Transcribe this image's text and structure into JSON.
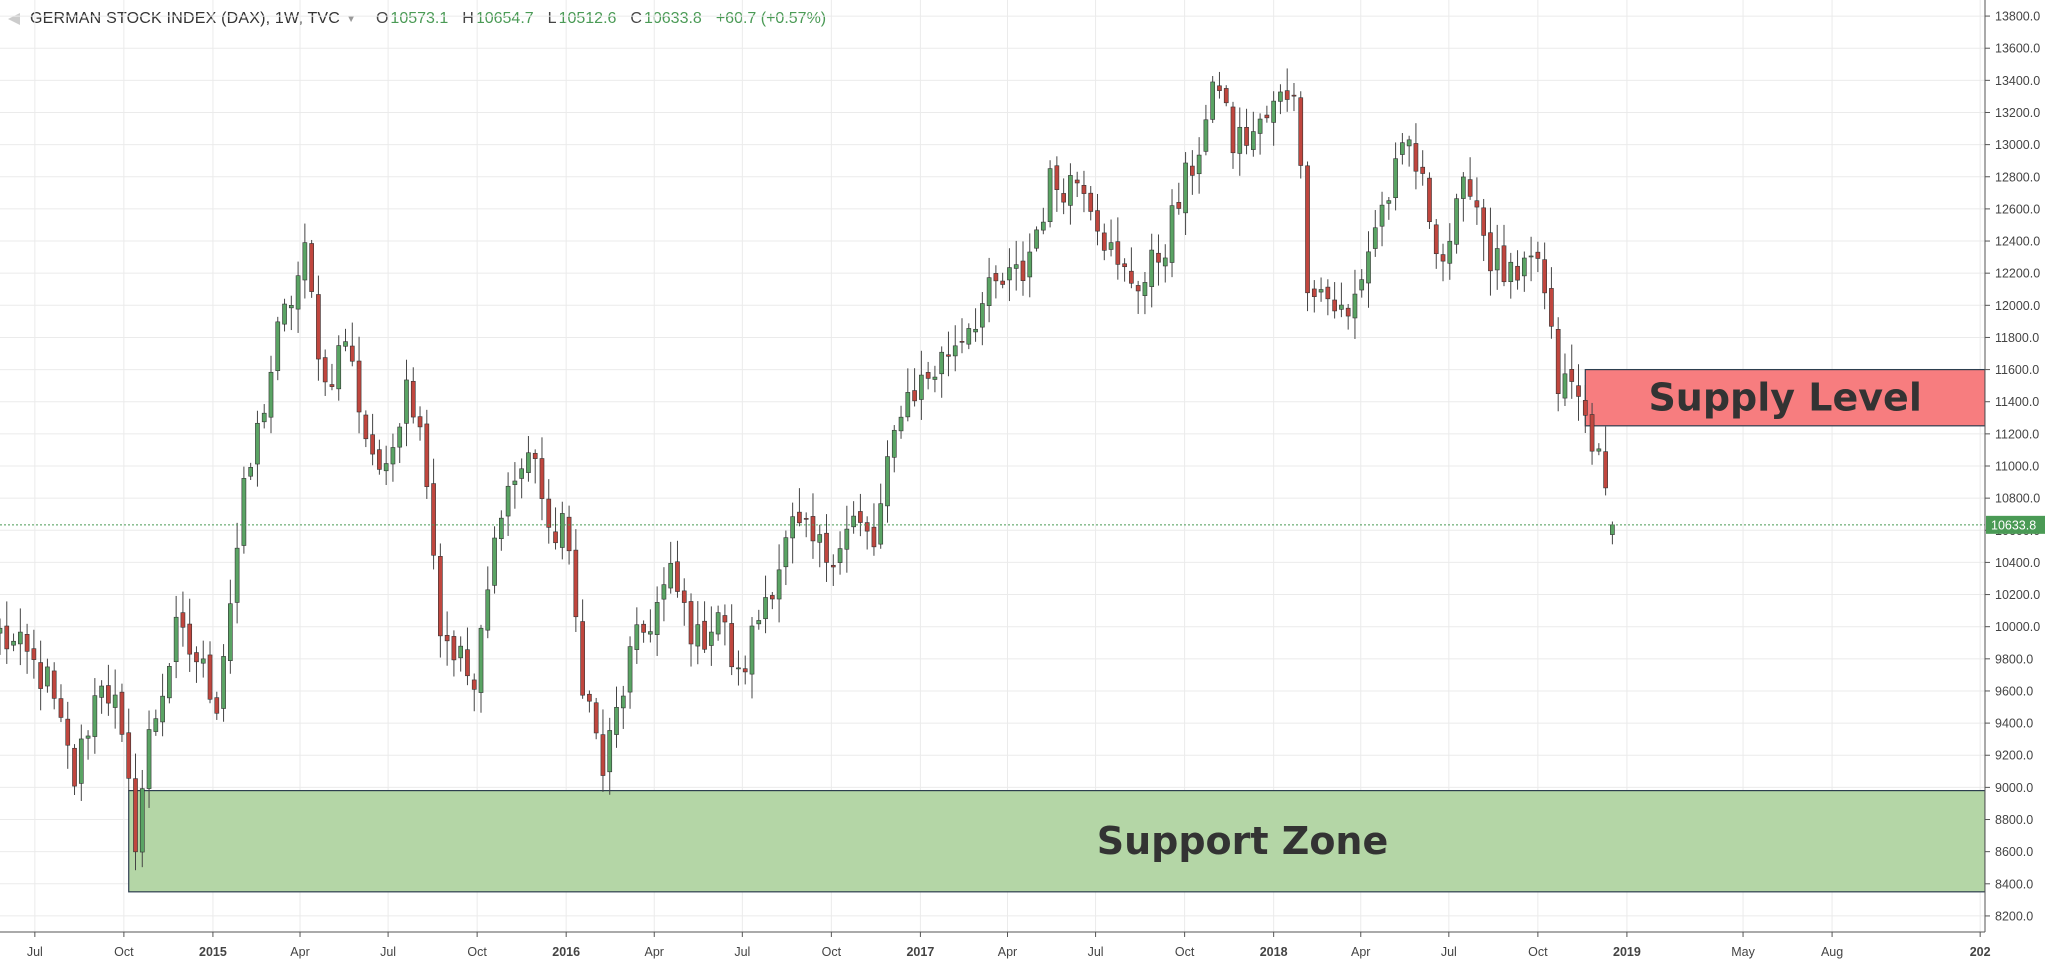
{
  "header": {
    "symbol": "GERMAN STOCK INDEX (DAX), 1W, TVC",
    "open_label": "O",
    "open": "10573.1",
    "high_label": "H",
    "high": "10654.7",
    "low_label": "L",
    "low": "10512.6",
    "close_label": "C",
    "close": "10633.8",
    "change": "+60.7 (+0.57%)"
  },
  "chart_data": {
    "type": "candlestick",
    "interval": "1W",
    "ylim": [
      8100,
      13900
    ],
    "xlim": [
      "2014-05-26",
      "2020-01-06"
    ],
    "y_ticks": [
      "8200.0",
      "8400.0",
      "8600.0",
      "8800.0",
      "9000.0",
      "9200.0",
      "9400.0",
      "9600.0",
      "9800.0",
      "10000.0",
      "10200.0",
      "10400.0",
      "10600.0",
      "10800.0",
      "11000.0",
      "11200.0",
      "11400.0",
      "11600.0",
      "11800.0",
      "12000.0",
      "12200.0",
      "12400.0",
      "12600.0",
      "12800.0",
      "13000.0",
      "13200.0",
      "13400.0",
      "13600.0",
      "13800.0"
    ],
    "x_ticks": [
      {
        "label": "Jul",
        "date": "2014-07-01"
      },
      {
        "label": "Oct",
        "date": "2014-10-01"
      },
      {
        "label": "2015",
        "date": "2015-01-01",
        "bold": true
      },
      {
        "label": "Apr",
        "date": "2015-04-01"
      },
      {
        "label": "Jul",
        "date": "2015-07-01"
      },
      {
        "label": "Oct",
        "date": "2015-10-01"
      },
      {
        "label": "2016",
        "date": "2016-01-01",
        "bold": true
      },
      {
        "label": "Apr",
        "date": "2016-04-01"
      },
      {
        "label": "Jul",
        "date": "2016-07-01"
      },
      {
        "label": "Oct",
        "date": "2016-10-01"
      },
      {
        "label": "2017",
        "date": "2017-01-01",
        "bold": true
      },
      {
        "label": "Apr",
        "date": "2017-04-01"
      },
      {
        "label": "Jul",
        "date": "2017-07-01"
      },
      {
        "label": "Oct",
        "date": "2017-10-01"
      },
      {
        "label": "2018",
        "date": "2018-01-01",
        "bold": true
      },
      {
        "label": "Apr",
        "date": "2018-04-01"
      },
      {
        "label": "Jul",
        "date": "2018-07-01"
      },
      {
        "label": "Oct",
        "date": "2018-10-01"
      },
      {
        "label": "2019",
        "date": "2019-01-01",
        "bold": true
      },
      {
        "label": "May",
        "date": "2019-05-01"
      },
      {
        "label": "Aug",
        "date": "2019-08-01"
      },
      {
        "label": "202",
        "date": "2020-01-01",
        "bold": true
      }
    ],
    "last_price": 10633.8,
    "last_price_label": "10633.8",
    "colors": {
      "up": "#5aa464",
      "down": "#c0463e",
      "wick": "#444444",
      "grid": "#ebebeb",
      "price_line": "#4a9a55",
      "supply": "#f77d7f",
      "support": "#b4d6a6"
    },
    "zones": [
      {
        "label": "Supply Level",
        "from_date": "2018-11-19",
        "to_date": "2020-01-06",
        "low": 11250,
        "high": 11600,
        "fill": "#f77d7f"
      },
      {
        "label": "Support Zone",
        "from_date": "2014-10-06",
        "to_date": "2020-01-06",
        "low": 8350,
        "high": 8980,
        "fill": "#b4d6a6"
      }
    ],
    "anchors": [
      {
        "date": "2014-05-26",
        "price": 9950
      },
      {
        "date": "2014-06-23",
        "price": 9800
      },
      {
        "date": "2014-07-14",
        "price": 9650
      },
      {
        "date": "2014-08-11",
        "price": 9050
      },
      {
        "date": "2014-08-25",
        "price": 9400
      },
      {
        "date": "2014-09-08",
        "price": 9700
      },
      {
        "date": "2014-09-22",
        "price": 9500
      },
      {
        "date": "2014-10-13",
        "price": 8700
      },
      {
        "date": "2014-10-27",
        "price": 9300
      },
      {
        "date": "2014-11-24",
        "price": 9950
      },
      {
        "date": "2014-12-15",
        "price": 9800
      },
      {
        "date": "2015-01-05",
        "price": 9550
      },
      {
        "date": "2015-02-02",
        "price": 10800
      },
      {
        "date": "2015-03-09",
        "price": 11800
      },
      {
        "date": "2015-04-06",
        "price": 12300
      },
      {
        "date": "2015-04-27",
        "price": 11500
      },
      {
        "date": "2015-05-18",
        "price": 11800
      },
      {
        "date": "2015-06-08",
        "price": 11200
      },
      {
        "date": "2015-06-29",
        "price": 10900
      },
      {
        "date": "2015-07-20",
        "price": 11600
      },
      {
        "date": "2015-08-10",
        "price": 11000
      },
      {
        "date": "2015-08-24",
        "price": 10000
      },
      {
        "date": "2015-09-14",
        "price": 9800
      },
      {
        "date": "2015-09-28",
        "price": 9600
      },
      {
        "date": "2015-10-26",
        "price": 10800
      },
      {
        "date": "2015-11-30",
        "price": 11100
      },
      {
        "date": "2015-12-14",
        "price": 10500
      },
      {
        "date": "2015-12-28",
        "price": 10700
      },
      {
        "date": "2016-01-18",
        "price": 9700
      },
      {
        "date": "2016-02-08",
        "price": 9100
      },
      {
        "date": "2016-03-07",
        "price": 9800
      },
      {
        "date": "2016-04-18",
        "price": 10300
      },
      {
        "date": "2016-05-16",
        "price": 9900
      },
      {
        "date": "2016-06-06",
        "price": 10100
      },
      {
        "date": "2016-06-27",
        "price": 9650
      },
      {
        "date": "2016-07-25",
        "price": 10200
      },
      {
        "date": "2016-08-22",
        "price": 10600
      },
      {
        "date": "2016-09-26",
        "price": 10450
      },
      {
        "date": "2016-10-24",
        "price": 10650
      },
      {
        "date": "2016-11-14",
        "price": 10500
      },
      {
        "date": "2016-12-12",
        "price": 11400
      },
      {
        "date": "2017-01-16",
        "price": 11600
      },
      {
        "date": "2017-02-20",
        "price": 11900
      },
      {
        "date": "2017-03-20",
        "price": 12100
      },
      {
        "date": "2017-04-17",
        "price": 12200
      },
      {
        "date": "2017-05-15",
        "price": 12750
      },
      {
        "date": "2017-06-19",
        "price": 12800
      },
      {
        "date": "2017-07-24",
        "price": 12200
      },
      {
        "date": "2017-08-21",
        "price": 12150
      },
      {
        "date": "2017-09-11",
        "price": 12400
      },
      {
        "date": "2017-10-16",
        "price": 13000
      },
      {
        "date": "2017-11-06",
        "price": 13400
      },
      {
        "date": "2017-11-20",
        "price": 13000
      },
      {
        "date": "2017-12-18",
        "price": 13100
      },
      {
        "date": "2018-01-22",
        "price": 13400
      },
      {
        "date": "2018-02-05",
        "price": 12200
      },
      {
        "date": "2018-03-19",
        "price": 11900
      },
      {
        "date": "2018-04-16",
        "price": 12500
      },
      {
        "date": "2018-05-21",
        "price": 13000
      },
      {
        "date": "2018-06-25",
        "price": 12300
      },
      {
        "date": "2018-07-23",
        "price": 12800
      },
      {
        "date": "2018-08-13",
        "price": 12300
      },
      {
        "date": "2018-09-10",
        "price": 12100
      },
      {
        "date": "2018-10-01",
        "price": 12300
      },
      {
        "date": "2018-10-22",
        "price": 11500
      },
      {
        "date": "2018-11-05",
        "price": 11500
      },
      {
        "date": "2018-11-26",
        "price": 11200
      },
      {
        "date": "2018-12-10",
        "price": 10800
      },
      {
        "date": "2018-12-17",
        "price": 10634
      }
    ]
  }
}
